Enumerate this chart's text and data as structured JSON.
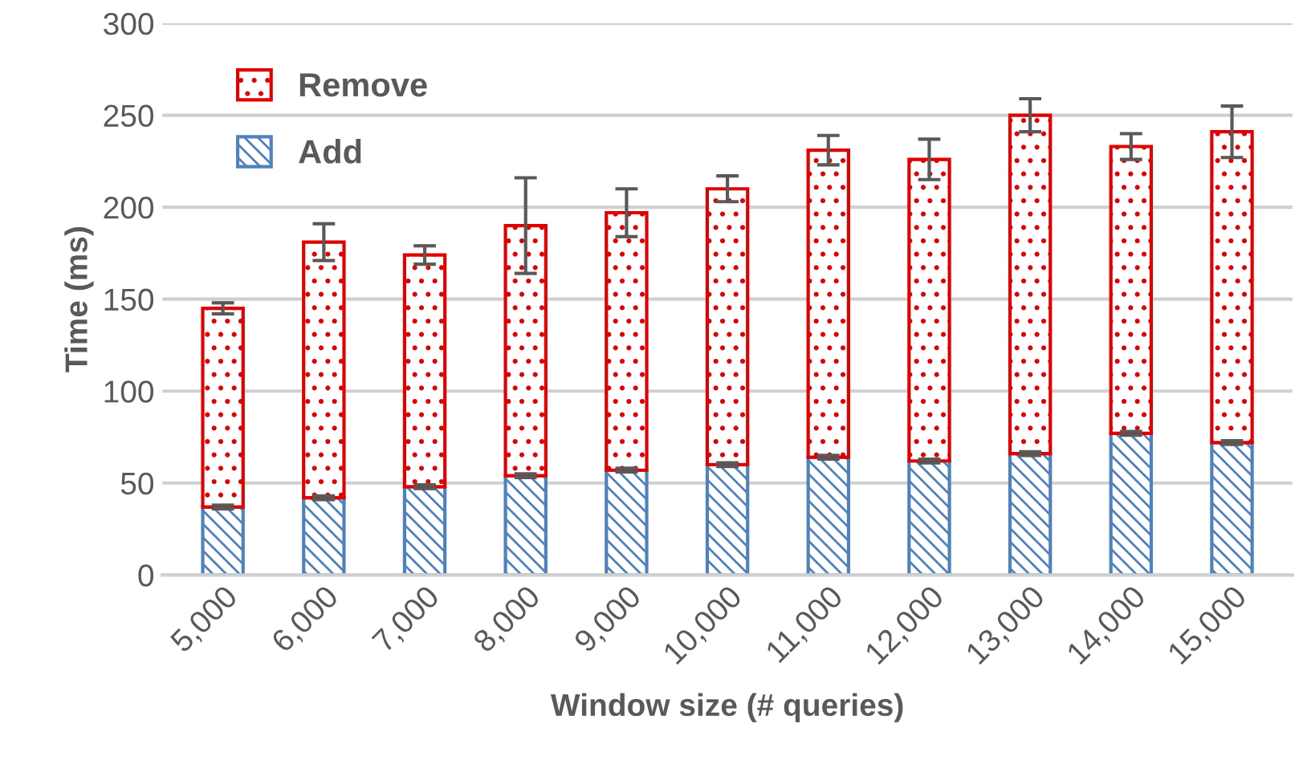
{
  "chart_data": {
    "type": "bar",
    "stacked": true,
    "xlabel": "Window size (# queries)",
    "ylabel": "Time (ms)",
    "categories": [
      "5,000",
      "6,000",
      "7,000",
      "8,000",
      "9,000",
      "10,000",
      "11,000",
      "12,000",
      "13,000",
      "14,000",
      "15,000"
    ],
    "series": [
      {
        "name": "Add",
        "color": "#4f81bd",
        "values": [
          37,
          42,
          48,
          54,
          57,
          60,
          64,
          62,
          66,
          77,
          72
        ],
        "errors": [
          1,
          1,
          1,
          1,
          1,
          1,
          1,
          1,
          1,
          1,
          1
        ]
      },
      {
        "name": "Remove",
        "color": "#e00000",
        "values": [
          108,
          139,
          126,
          136,
          140,
          150,
          167,
          164,
          184,
          156,
          169
        ],
        "errors": [
          3,
          10,
          5,
          26,
          13,
          7,
          8,
          11,
          9,
          7,
          14
        ]
      }
    ],
    "ylim": [
      0,
      300
    ],
    "yticks": [
      0,
      50,
      100,
      150,
      200,
      250,
      300
    ],
    "grid": "y",
    "legend": "top left"
  }
}
